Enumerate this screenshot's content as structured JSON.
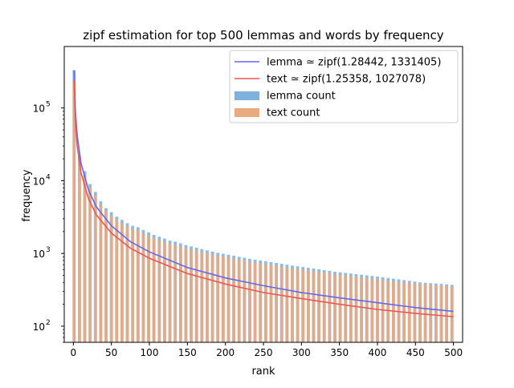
{
  "chart_data": {
    "type": "bar",
    "title": "zipf estimation for top 500 lemmas and words by frequency",
    "xlabel": "rank",
    "ylabel": "frequency",
    "x_scale": "linear",
    "y_scale": "log",
    "xlim": [
      -12,
      512
    ],
    "ylim": [
      60,
      700000
    ],
    "x_ticks": [
      0,
      50,
      100,
      150,
      200,
      250,
      300,
      350,
      400,
      450,
      500
    ],
    "y_ticks": [
      {
        "value": 100,
        "label": "10",
        "exp": "2"
      },
      {
        "value": 1000,
        "label": "10",
        "exp": "3"
      },
      {
        "value": 10000,
        "label": "10",
        "exp": "4"
      },
      {
        "value": 100000,
        "label": "10",
        "exp": "5"
      }
    ],
    "grid": false,
    "legend_position": "top-right",
    "bar_width": 4,
    "series": [
      {
        "name": "lemma ≃ zipf(1.28442, 1331405)",
        "kind": "line",
        "color": "#6666ee",
        "zipf_s": 1.28442,
        "zipf_c": 1331405,
        "x": [
          1,
          2,
          3,
          5,
          10,
          20,
          30,
          50,
          75,
          100,
          150,
          200,
          250,
          300,
          350,
          400,
          450,
          500
        ],
        "values": [
          330000,
          136000,
          80000,
          42000,
          17500,
          7400,
          4400,
          2400,
          1450,
          1050,
          640,
          460,
          360,
          290,
          245,
          210,
          180,
          160
        ]
      },
      {
        "name": "text ≃ zipf(1.25358, 1027078)",
        "kind": "line",
        "color": "#ee5555",
        "zipf_s": 1.25358,
        "zipf_c": 1027078,
        "x": [
          1,
          2,
          3,
          5,
          10,
          20,
          30,
          50,
          75,
          100,
          150,
          200,
          250,
          300,
          350,
          400,
          450,
          500
        ],
        "values": [
          235000,
          98000,
          57000,
          30000,
          13000,
          5600,
          3400,
          1900,
          1180,
          860,
          530,
          380,
          290,
          240,
          200,
          170,
          150,
          135
        ]
      },
      {
        "name": "lemma count",
        "kind": "bar",
        "color": "#7fb1dd",
        "x": [
          1,
          8,
          15,
          22,
          29,
          36,
          43,
          50,
          57,
          64,
          71,
          78,
          85,
          92,
          99,
          106,
          113,
          120,
          127,
          134,
          141,
          148,
          155,
          162,
          169,
          176,
          183,
          190,
          197,
          204,
          211,
          218,
          225,
          232,
          239,
          246,
          253,
          260,
          267,
          274,
          281,
          288,
          295,
          302,
          309,
          316,
          323,
          330,
          337,
          344,
          351,
          358,
          365,
          372,
          379,
          386,
          393,
          400,
          407,
          414,
          421,
          428,
          435,
          442,
          449,
          456,
          463,
          470,
          477,
          484,
          491,
          498
        ],
        "values": [
          330000,
          22000,
          13500,
          9000,
          7000,
          5200,
          4200,
          3700,
          3200,
          2900,
          2600,
          2400,
          2300,
          2100,
          1950,
          1800,
          1700,
          1600,
          1500,
          1450,
          1380,
          1300,
          1250,
          1200,
          1150,
          1100,
          1060,
          1020,
          990,
          960,
          930,
          900,
          870,
          845,
          820,
          800,
          780,
          760,
          740,
          720,
          700,
          680,
          665,
          650,
          635,
          620,
          605,
          590,
          575,
          560,
          550,
          540,
          530,
          520,
          510,
          500,
          490,
          480,
          470,
          460,
          450,
          440,
          430,
          420,
          410,
          400,
          395,
          390,
          385,
          380,
          375,
          370
        ]
      },
      {
        "name": "text count",
        "kind": "bar",
        "color": "#e9aa80",
        "x": [
          1,
          8,
          15,
          22,
          29,
          36,
          43,
          50,
          57,
          64,
          71,
          78,
          85,
          92,
          99,
          106,
          113,
          120,
          127,
          134,
          141,
          148,
          155,
          162,
          169,
          176,
          183,
          190,
          197,
          204,
          211,
          218,
          225,
          232,
          239,
          246,
          253,
          260,
          267,
          274,
          281,
          288,
          295,
          302,
          309,
          316,
          323,
          330,
          337,
          344,
          351,
          358,
          365,
          372,
          379,
          386,
          393,
          400,
          407,
          414,
          421,
          428,
          435,
          442,
          449,
          456,
          463,
          470,
          477,
          484,
          491,
          498
        ],
        "values": [
          230000,
          18000,
          11000,
          8000,
          6200,
          4600,
          3800,
          3300,
          2900,
          2600,
          2350,
          2200,
          2050,
          1900,
          1750,
          1620,
          1520,
          1440,
          1360,
          1300,
          1240,
          1180,
          1130,
          1080,
          1040,
          1000,
          960,
          930,
          900,
          870,
          845,
          820,
          795,
          770,
          750,
          730,
          710,
          690,
          675,
          660,
          640,
          625,
          610,
          595,
          580,
          565,
          555,
          545,
          535,
          520,
          510,
          500,
          490,
          480,
          470,
          460,
          450,
          440,
          430,
          420,
          410,
          400,
          395,
          390,
          385,
          380,
          375,
          370,
          365,
          360,
          355,
          350
        ]
      }
    ]
  }
}
